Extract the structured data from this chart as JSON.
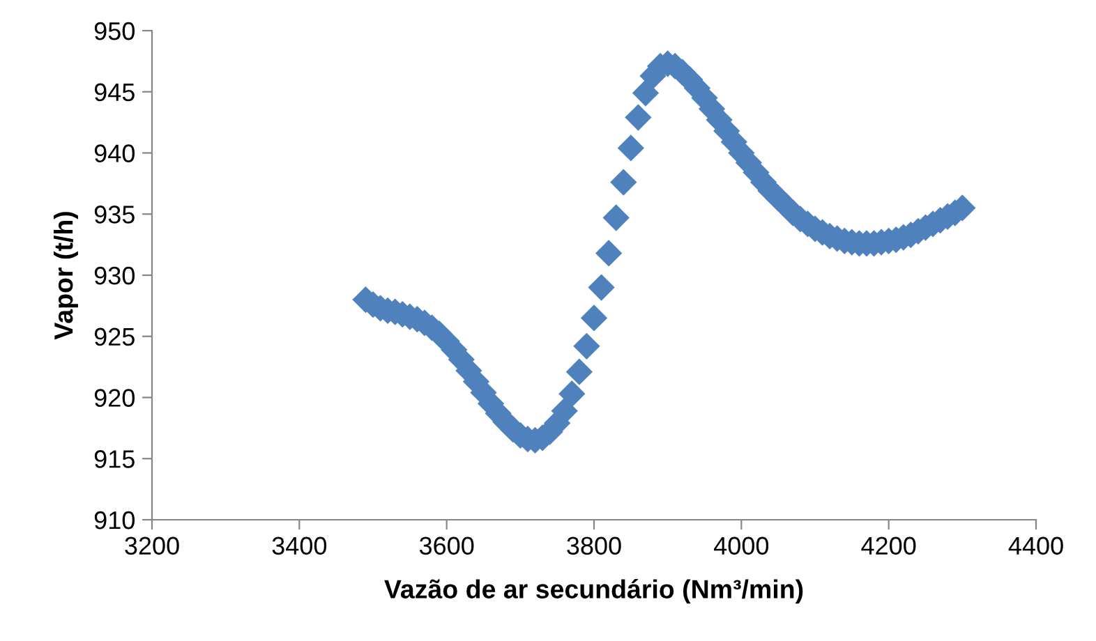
{
  "chart_data": {
    "type": "scatter",
    "xlabel": "Vazão de ar secundário (Nm³/min)",
    "ylabel": "Vapor (t/h)",
    "xlim": [
      3200,
      4400
    ],
    "xticks": [
      3200,
      3400,
      3600,
      3800,
      4000,
      4200,
      4400
    ],
    "ylim": [
      910,
      950
    ],
    "yticks": [
      910,
      915,
      920,
      925,
      930,
      935,
      940,
      945,
      950
    ],
    "grid": false,
    "marker": "diamond",
    "series": [
      {
        "color": "#4f81bd",
        "x": [
          3490,
          3500,
          3510,
          3520,
          3530,
          3540,
          3550,
          3560,
          3570,
          3580,
          3590,
          3600,
          3610,
          3620,
          3630,
          3640,
          3650,
          3660,
          3670,
          3680,
          3690,
          3700,
          3710,
          3720,
          3730,
          3740,
          3750,
          3760,
          3770,
          3780,
          3790,
          3800,
          3810,
          3820,
          3830,
          3840,
          3850,
          3860,
          3870,
          3880,
          3890,
          3900,
          3910,
          3920,
          3930,
          3940,
          3950,
          3960,
          3970,
          3980,
          3990,
          4000,
          4010,
          4020,
          4030,
          4040,
          4050,
          4060,
          4070,
          4080,
          4090,
          4100,
          4110,
          4120,
          4130,
          4140,
          4150,
          4160,
          4170,
          4180,
          4190,
          4200,
          4210,
          4220,
          4230,
          4240,
          4250,
          4260,
          4270,
          4280,
          4290,
          4300
        ],
        "values": [
          928.0,
          927.6,
          927.3,
          927.1,
          927.0,
          926.8,
          926.6,
          926.4,
          926.1,
          925.7,
          925.2,
          924.6,
          923.9,
          923.1,
          922.2,
          921.3,
          920.4,
          919.5,
          918.7,
          918.0,
          917.4,
          916.9,
          916.6,
          916.5,
          916.7,
          917.2,
          917.9,
          918.9,
          920.3,
          922.1,
          924.2,
          926.5,
          929.0,
          931.8,
          934.7,
          937.6,
          940.4,
          942.9,
          944.9,
          946.3,
          947.1,
          947.3,
          947.1,
          946.6,
          946.0,
          945.3,
          944.5,
          943.6,
          942.7,
          941.8,
          940.9,
          940.0,
          939.2,
          938.4,
          937.6,
          936.9,
          936.3,
          935.7,
          935.1,
          934.6,
          934.2,
          933.8,
          933.5,
          933.2,
          933.0,
          932.8,
          932.7,
          932.6,
          932.6,
          932.6,
          932.7,
          932.8,
          932.9,
          933.1,
          933.3,
          933.6,
          933.9,
          934.2,
          934.5,
          934.8,
          935.1,
          935.5
        ]
      }
    ]
  }
}
